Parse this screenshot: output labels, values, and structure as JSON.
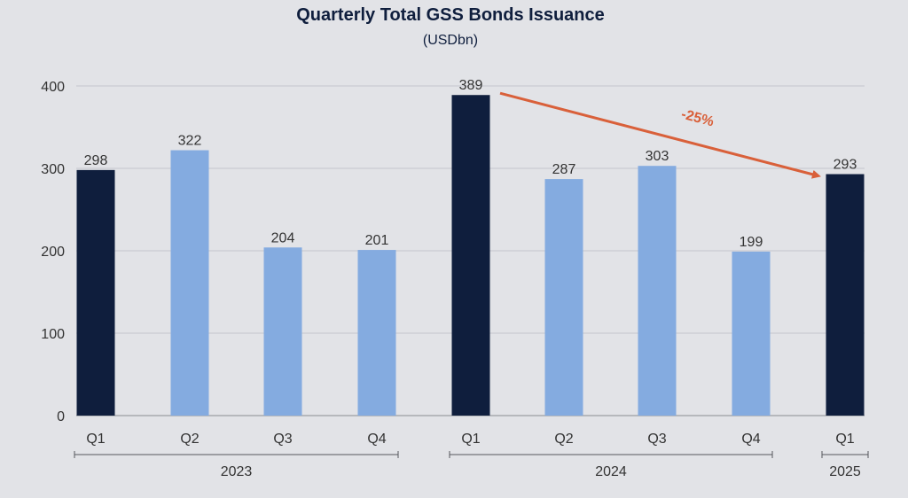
{
  "chart_data": {
    "type": "bar",
    "title": "Quarterly Total GSS Bonds Issuance",
    "subtitle": "(USDbn)",
    "categories": [
      "Q1",
      "Q2",
      "Q3",
      "Q4",
      "Q1",
      "Q2",
      "Q3",
      "Q4",
      "Q1"
    ],
    "values": [
      298,
      322,
      204,
      201,
      389,
      287,
      303,
      199,
      293
    ],
    "highlight": [
      true,
      false,
      false,
      false,
      true,
      false,
      false,
      false,
      true
    ],
    "groups": [
      {
        "label": "2023",
        "from": 0,
        "to": 3
      },
      {
        "label": "2024",
        "from": 4,
        "to": 7
      },
      {
        "label": "2025",
        "from": 8,
        "to": 8
      }
    ],
    "ylim": [
      0,
      400
    ],
    "yticks": [
      0,
      100,
      200,
      300,
      400
    ],
    "grid": true,
    "annotation": {
      "label": "-25%",
      "from_index": 4,
      "to_index": 8
    },
    "colors": {
      "highlight": "#0f1e3d",
      "regular": "#84abe0",
      "annotation": "#d9603a",
      "grid": "#c4c6cc",
      "axis": "#8a8c92"
    }
  }
}
